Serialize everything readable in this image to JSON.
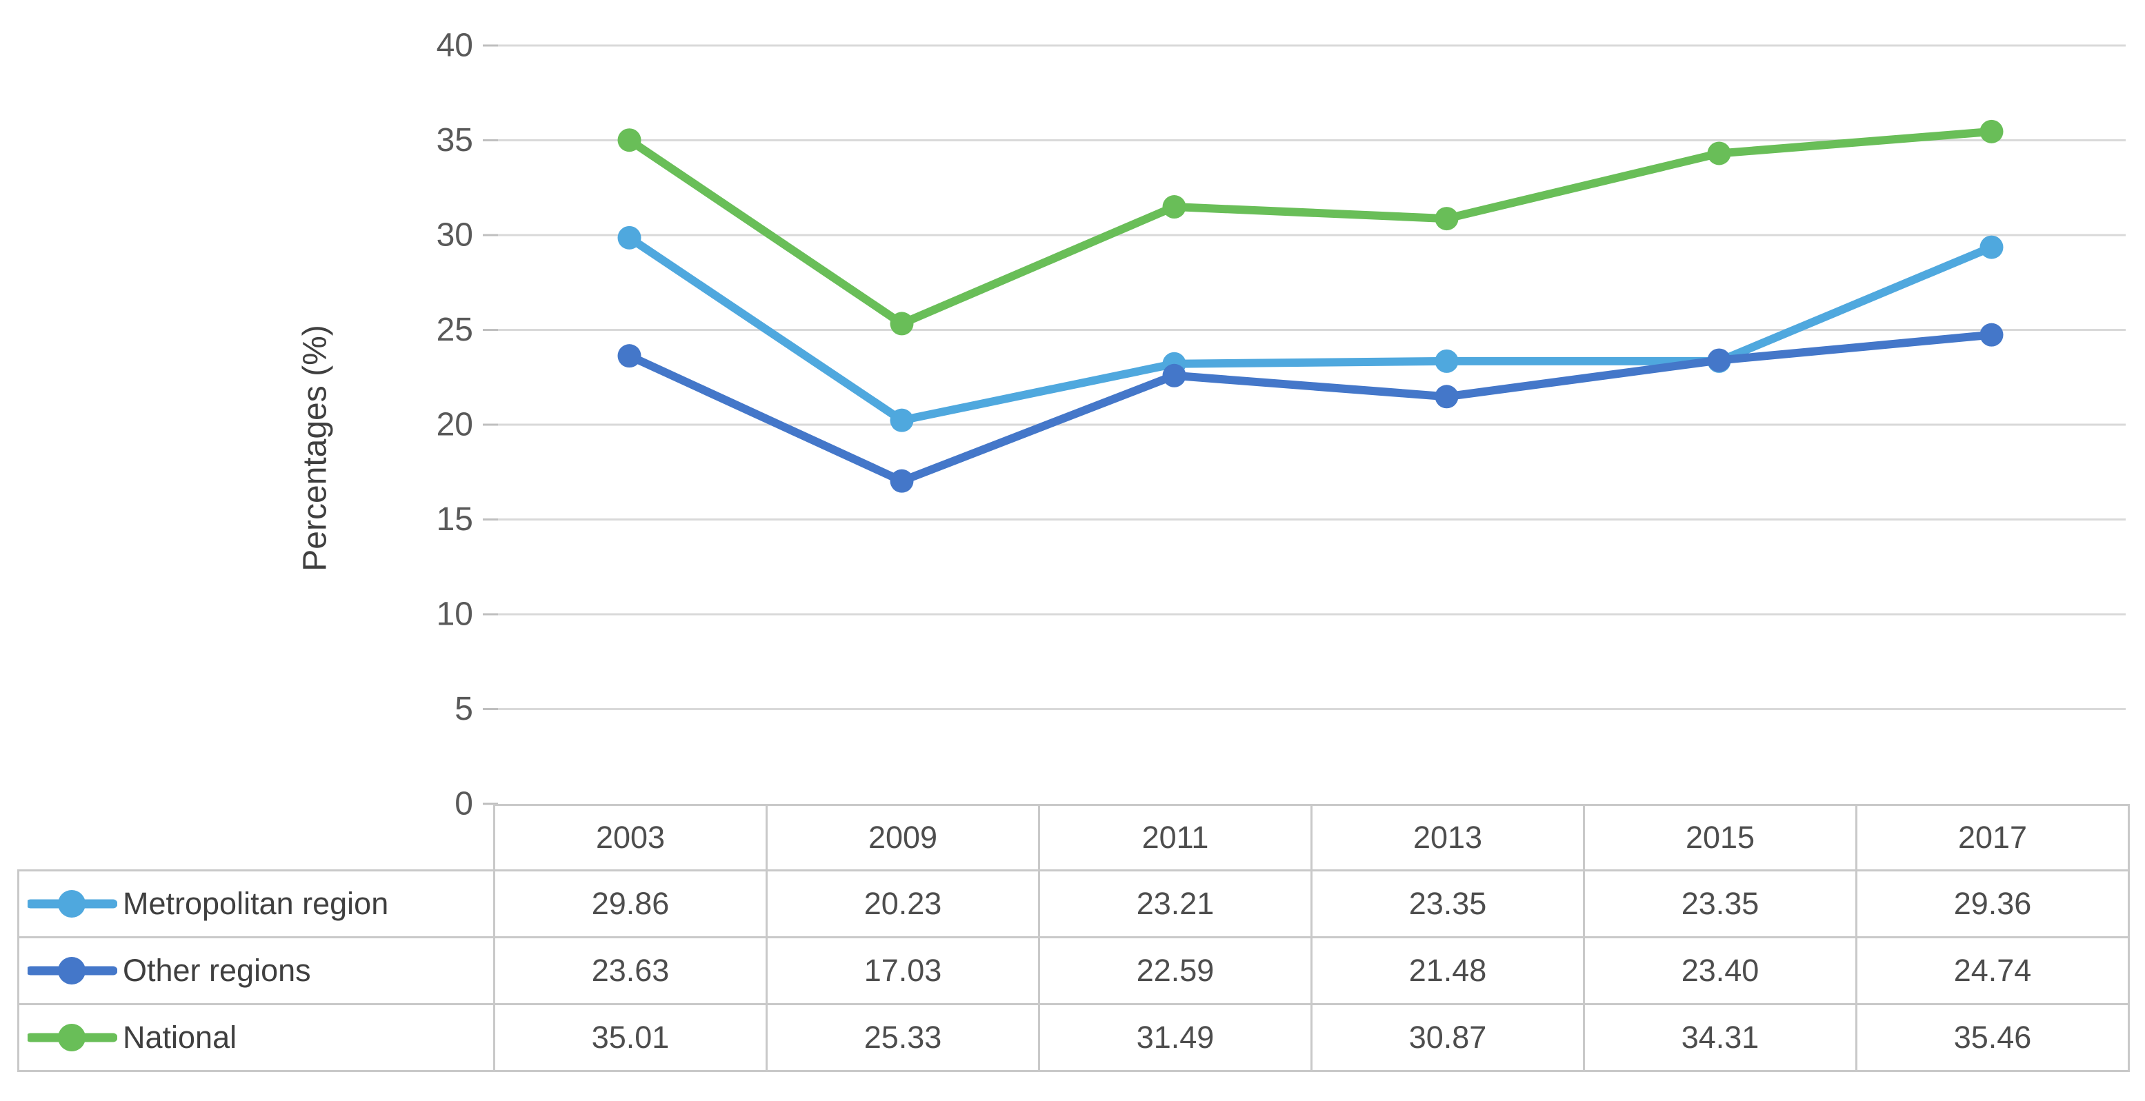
{
  "chart_data": {
    "type": "line",
    "title": "",
    "xlabel": "",
    "ylabel": "Percentages (%)",
    "categories": [
      "2003",
      "2009",
      "2011",
      "2013",
      "2015",
      "2017"
    ],
    "series": [
      {
        "name": "Metropolitan region",
        "color": "#4FA8DE",
        "values": [
          29.86,
          20.23,
          23.21,
          23.35,
          23.35,
          29.36
        ]
      },
      {
        "name": "Other regions",
        "color": "#4477C9",
        "values": [
          23.63,
          17.03,
          22.59,
          21.48,
          23.4,
          24.74
        ]
      },
      {
        "name": "National",
        "color": "#69BE58",
        "values": [
          35.01,
          25.33,
          31.49,
          30.87,
          34.31,
          35.46
        ]
      }
    ],
    "ylim": [
      0,
      40
    ],
    "yticks": [
      0,
      5,
      10,
      15,
      20,
      25,
      30,
      35,
      40
    ],
    "grid": true,
    "gridline_color": "#D9D9D9",
    "tick_mark_color": "#BFBFBF",
    "axis_text_color": "#595959",
    "marker": "circle",
    "legend_position": "table-left"
  },
  "table": {
    "columns": [
      "2003",
      "2009",
      "2011",
      "2013",
      "2015",
      "2017"
    ],
    "rows": [
      {
        "label": "Metropolitan region",
        "cells": [
          "29.86",
          "20.23",
          "23.21",
          "23.35",
          "23.35",
          "29.36"
        ]
      },
      {
        "label": "Other regions",
        "cells": [
          "23.63",
          "17.03",
          "22.59",
          "21.48",
          "23.40",
          "24.74"
        ]
      },
      {
        "label": "National",
        "cells": [
          "35.01",
          "25.33",
          "31.49",
          "30.87",
          "34.31",
          "35.46"
        ]
      }
    ],
    "border_color": "#C9C9C9",
    "text_color": "#4D4D4D"
  }
}
